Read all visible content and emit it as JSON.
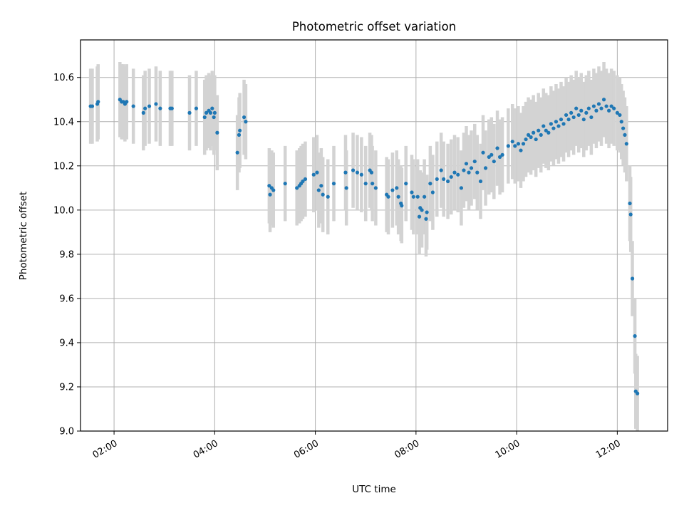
{
  "chart_data": {
    "type": "scatter",
    "title": "Photometric offset variation",
    "xlabel": "UTC time",
    "ylabel": "Photometric offset",
    "xlim": [
      "01:20",
      "13:00"
    ],
    "ylim": [
      9.0,
      10.77
    ],
    "grid": true,
    "x_ticks": [
      "02:00",
      "04:00",
      "06:00",
      "08:00",
      "10:00",
      "12:00"
    ],
    "y_ticks": [
      "9.0",
      "9.2",
      "9.4",
      "9.6",
      "9.8",
      "10.0",
      "10.2",
      "10.4",
      "10.6"
    ],
    "colors": {
      "points": "#1f77b4",
      "error_bars": "#d3d3d3",
      "grid": "#b0b0b0"
    },
    "error_half_width": 0.17,
    "points": [
      [
        "01:32",
        10.47
      ],
      [
        "01:34",
        10.47
      ],
      [
        "01:40",
        10.48
      ],
      [
        "01:41",
        10.49
      ],
      [
        "02:07",
        10.5
      ],
      [
        "02:09",
        10.49
      ],
      [
        "02:11",
        10.49
      ],
      [
        "02:13",
        10.48
      ],
      [
        "02:15",
        10.49
      ],
      [
        "02:23",
        10.47
      ],
      [
        "02:35",
        10.44
      ],
      [
        "02:37",
        10.46
      ],
      [
        "02:42",
        10.47
      ],
      [
        "02:50",
        10.48
      ],
      [
        "02:55",
        10.46
      ],
      [
        "03:07",
        10.46
      ],
      [
        "03:09",
        10.46
      ],
      [
        "03:30",
        10.44
      ],
      [
        "03:38",
        10.46
      ],
      [
        "03:48",
        10.42
      ],
      [
        "03:50",
        10.44
      ],
      [
        "03:53",
        10.45
      ],
      [
        "03:55",
        10.44
      ],
      [
        "03:57",
        10.46
      ],
      [
        "03:59",
        10.42
      ],
      [
        "04:00",
        10.44
      ],
      [
        "04:03",
        10.35
      ],
      [
        "04:27",
        10.26
      ],
      [
        "04:29",
        10.34
      ],
      [
        "04:30",
        10.36
      ],
      [
        "04:35",
        10.42
      ],
      [
        "04:37",
        10.4
      ],
      [
        "05:05",
        10.11
      ],
      [
        "05:06",
        10.07
      ],
      [
        "05:08",
        10.1
      ],
      [
        "05:10",
        10.09
      ],
      [
        "05:24",
        10.12
      ],
      [
        "05:38",
        10.1
      ],
      [
        "05:41",
        10.11
      ],
      [
        "05:43",
        10.12
      ],
      [
        "05:45",
        10.13
      ],
      [
        "05:48",
        10.14
      ],
      [
        "05:58",
        10.16
      ],
      [
        "06:02",
        10.17
      ],
      [
        "06:04",
        10.09
      ],
      [
        "06:07",
        10.11
      ],
      [
        "06:09",
        10.07
      ],
      [
        "06:15",
        10.06
      ],
      [
        "06:22",
        10.12
      ],
      [
        "06:36",
        10.17
      ],
      [
        "06:37",
        10.1
      ],
      [
        "06:45",
        10.18
      ],
      [
        "06:50",
        10.17
      ],
      [
        "06:55",
        10.16
      ],
      [
        "07:00",
        10.12
      ],
      [
        "07:05",
        10.18
      ],
      [
        "07:07",
        10.17
      ],
      [
        "07:08",
        10.12
      ],
      [
        "07:12",
        10.1
      ],
      [
        "07:25",
        10.07
      ],
      [
        "07:27",
        10.06
      ],
      [
        "07:32",
        10.09
      ],
      [
        "07:37",
        10.1
      ],
      [
        "07:39",
        10.06
      ],
      [
        "07:42",
        10.03
      ],
      [
        "07:43",
        10.02
      ],
      [
        "07:48",
        10.12
      ],
      [
        "07:55",
        10.08
      ],
      [
        "07:57",
        10.06
      ],
      [
        "08:02",
        10.06
      ],
      [
        "08:04",
        9.97
      ],
      [
        "08:05",
        10.01
      ],
      [
        "08:07",
        10.0
      ],
      [
        "08:10",
        10.06
      ],
      [
        "08:12",
        9.96
      ],
      [
        "08:13",
        9.99
      ],
      [
        "08:17",
        10.12
      ],
      [
        "08:20",
        10.08
      ],
      [
        "08:25",
        10.14
      ],
      [
        "08:30",
        10.18
      ],
      [
        "08:33",
        10.14
      ],
      [
        "08:38",
        10.13
      ],
      [
        "08:42",
        10.15
      ],
      [
        "08:46",
        10.17
      ],
      [
        "08:50",
        10.16
      ],
      [
        "08:54",
        10.1
      ],
      [
        "08:57",
        10.18
      ],
      [
        "09:00",
        10.21
      ],
      [
        "09:03",
        10.17
      ],
      [
        "09:06",
        10.19
      ],
      [
        "09:10",
        10.22
      ],
      [
        "09:13",
        10.17
      ],
      [
        "09:17",
        10.13
      ],
      [
        "09:20",
        10.26
      ],
      [
        "09:23",
        10.19
      ],
      [
        "09:27",
        10.24
      ],
      [
        "09:30",
        10.25
      ],
      [
        "09:33",
        10.22
      ],
      [
        "09:37",
        10.28
      ],
      [
        "09:40",
        10.24
      ],
      [
        "09:43",
        10.25
      ],
      [
        "09:50",
        10.29
      ],
      [
        "09:55",
        10.31
      ],
      [
        "09:58",
        10.29
      ],
      [
        "10:02",
        10.3
      ],
      [
        "10:05",
        10.27
      ],
      [
        "10:08",
        10.3
      ],
      [
        "10:11",
        10.32
      ],
      [
        "10:14",
        10.34
      ],
      [
        "10:17",
        10.33
      ],
      [
        "10:20",
        10.35
      ],
      [
        "10:23",
        10.32
      ],
      [
        "10:26",
        10.36
      ],
      [
        "10:29",
        10.34
      ],
      [
        "10:32",
        10.38
      ],
      [
        "10:35",
        10.36
      ],
      [
        "10:38",
        10.35
      ],
      [
        "10:41",
        10.39
      ],
      [
        "10:44",
        10.37
      ],
      [
        "10:47",
        10.4
      ],
      [
        "10:50",
        10.38
      ],
      [
        "10:53",
        10.41
      ],
      [
        "10:56",
        10.39
      ],
      [
        "10:59",
        10.43
      ],
      [
        "11:02",
        10.41
      ],
      [
        "11:05",
        10.44
      ],
      [
        "11:08",
        10.42
      ],
      [
        "11:11",
        10.46
      ],
      [
        "11:14",
        10.43
      ],
      [
        "11:17",
        10.45
      ],
      [
        "11:20",
        10.41
      ],
      [
        "11:23",
        10.44
      ],
      [
        "11:26",
        10.46
      ],
      [
        "11:29",
        10.42
      ],
      [
        "11:32",
        10.47
      ],
      [
        "11:35",
        10.45
      ],
      [
        "11:38",
        10.48
      ],
      [
        "11:41",
        10.46
      ],
      [
        "11:44",
        10.5
      ],
      [
        "11:47",
        10.47
      ],
      [
        "11:50",
        10.45
      ],
      [
        "11:53",
        10.47
      ],
      [
        "11:56",
        10.46
      ],
      [
        "12:00",
        10.44
      ],
      [
        "12:03",
        10.43
      ],
      [
        "12:05",
        10.4
      ],
      [
        "12:07",
        10.37
      ],
      [
        "12:09",
        10.34
      ],
      [
        "12:11",
        10.3
      ],
      [
        "12:15",
        10.03
      ],
      [
        "12:16",
        9.98
      ],
      [
        "12:18",
        9.69
      ],
      [
        "12:21",
        9.43
      ],
      [
        "12:22",
        9.18
      ],
      [
        "12:24",
        9.17
      ]
    ]
  }
}
